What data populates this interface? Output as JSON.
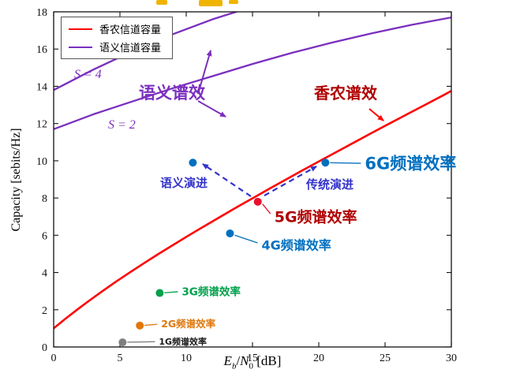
{
  "chart_data": {
    "type": "line",
    "xlabel_parts": {
      "v1": "E",
      "s1": "b",
      "sep": "/",
      "v2": "N",
      "s2": "0",
      "unit": " [dB]"
    },
    "ylabel": "Capacity [sebits/Hz]",
    "xlim": [
      0,
      30
    ],
    "ylim": [
      0,
      18
    ],
    "x_ticks": [
      0,
      5,
      10,
      15,
      20,
      25,
      30
    ],
    "y_ticks": [
      0,
      2,
      4,
      6,
      8,
      10,
      12,
      14,
      16,
      18
    ],
    "legend": [
      {
        "label": "香农信道容量",
        "color": "#FF0000"
      },
      {
        "label": "语义信道容量",
        "color": "#7B2FBE"
      }
    ],
    "curves": [
      {
        "name": "shannon",
        "s_label": "",
        "color": "#FF0000",
        "points": [
          [
            0,
            1
          ],
          [
            0.86,
            1.5
          ],
          [
            1.76,
            2
          ],
          [
            2.7,
            2.5
          ],
          [
            3.68,
            3
          ],
          [
            4.68,
            3.5
          ],
          [
            5.74,
            4
          ],
          [
            6.81,
            4.5
          ],
          [
            7.92,
            5
          ],
          [
            9.06,
            5.5
          ],
          [
            10.21,
            6
          ],
          [
            11.4,
            6.5
          ],
          [
            12.59,
            7
          ],
          [
            13.8,
            7.5
          ],
          [
            15.04,
            8
          ],
          [
            16.28,
            8.5
          ],
          [
            17.54,
            9
          ],
          [
            18.8,
            9.5
          ],
          [
            20.1,
            10
          ],
          [
            21.4,
            10.5
          ],
          [
            22.7,
            11
          ],
          [
            24,
            11.5
          ],
          [
            25.33,
            12
          ],
          [
            26.66,
            12.5
          ],
          [
            28,
            13
          ],
          [
            29.34,
            13.5
          ],
          [
            30,
            13.75
          ]
        ]
      },
      {
        "name": "semantic-s2",
        "s_label": "S = 2",
        "color": "#7B2FBE",
        "points": [
          [
            0,
            11.7
          ],
          [
            3,
            12.5
          ],
          [
            6,
            13.2
          ],
          [
            9,
            13.9
          ],
          [
            12,
            14.55
          ],
          [
            15,
            15.2
          ],
          [
            18,
            15.8
          ],
          [
            21,
            16.35
          ],
          [
            24,
            16.85
          ],
          [
            27,
            17.3
          ],
          [
            30,
            17.7
          ]
        ]
      },
      {
        "name": "semantic-s4",
        "s_label": "S = 4",
        "color": "#7B2FBE",
        "points": [
          [
            0,
            13.8
          ],
          [
            3,
            14.9
          ],
          [
            6,
            15.9
          ],
          [
            9,
            16.8
          ],
          [
            12,
            17.6
          ],
          [
            14,
            18.05
          ],
          [
            15.5,
            18.4
          ]
        ]
      }
    ],
    "points": [
      {
        "id": "1g",
        "label": "1G频谱效率",
        "x": 5.2,
        "y": 0.25,
        "color": "#808080",
        "label_color": "#1a1a1a"
      },
      {
        "id": "2g",
        "label": "2G频谱效率",
        "x": 6.5,
        "y": 1.15,
        "color": "#E0780B",
        "label_color": "#E0780B"
      },
      {
        "id": "3g",
        "label": "3G频谱效率",
        "x": 8,
        "y": 2.9,
        "color": "#00A14B",
        "label_color": "#00A14B"
      },
      {
        "id": "4g",
        "label": "4G频谱效率",
        "x": 13.3,
        "y": 6.1,
        "color": "#0070C0",
        "label_color": "#0070C0"
      },
      {
        "id": "5g",
        "label": "5G频谱效率",
        "x": 15.4,
        "y": 7.8,
        "color": "#E8112D",
        "label_color": "#B00000"
      },
      {
        "id": "6g",
        "label": "6G频谱效率",
        "x": 20.5,
        "y": 9.9,
        "color": "#0070C0",
        "label_color": "#0070C0"
      },
      {
        "id": "semantic-6g",
        "label": "",
        "x": 10.5,
        "y": 9.9,
        "color": "#0070C0",
        "label_color": "#0070C0"
      }
    ],
    "annotations": {
      "semantic_se": {
        "text": "语义谱效",
        "color": "#7B2FBE"
      },
      "shannon_se": {
        "text": "香农谱效",
        "color": "#B00000"
      },
      "semantic_evolution": {
        "text": "语义演进",
        "color": "#3333CC"
      },
      "traditional_evolution": {
        "text": "传统演进",
        "color": "#3333CC"
      }
    }
  }
}
